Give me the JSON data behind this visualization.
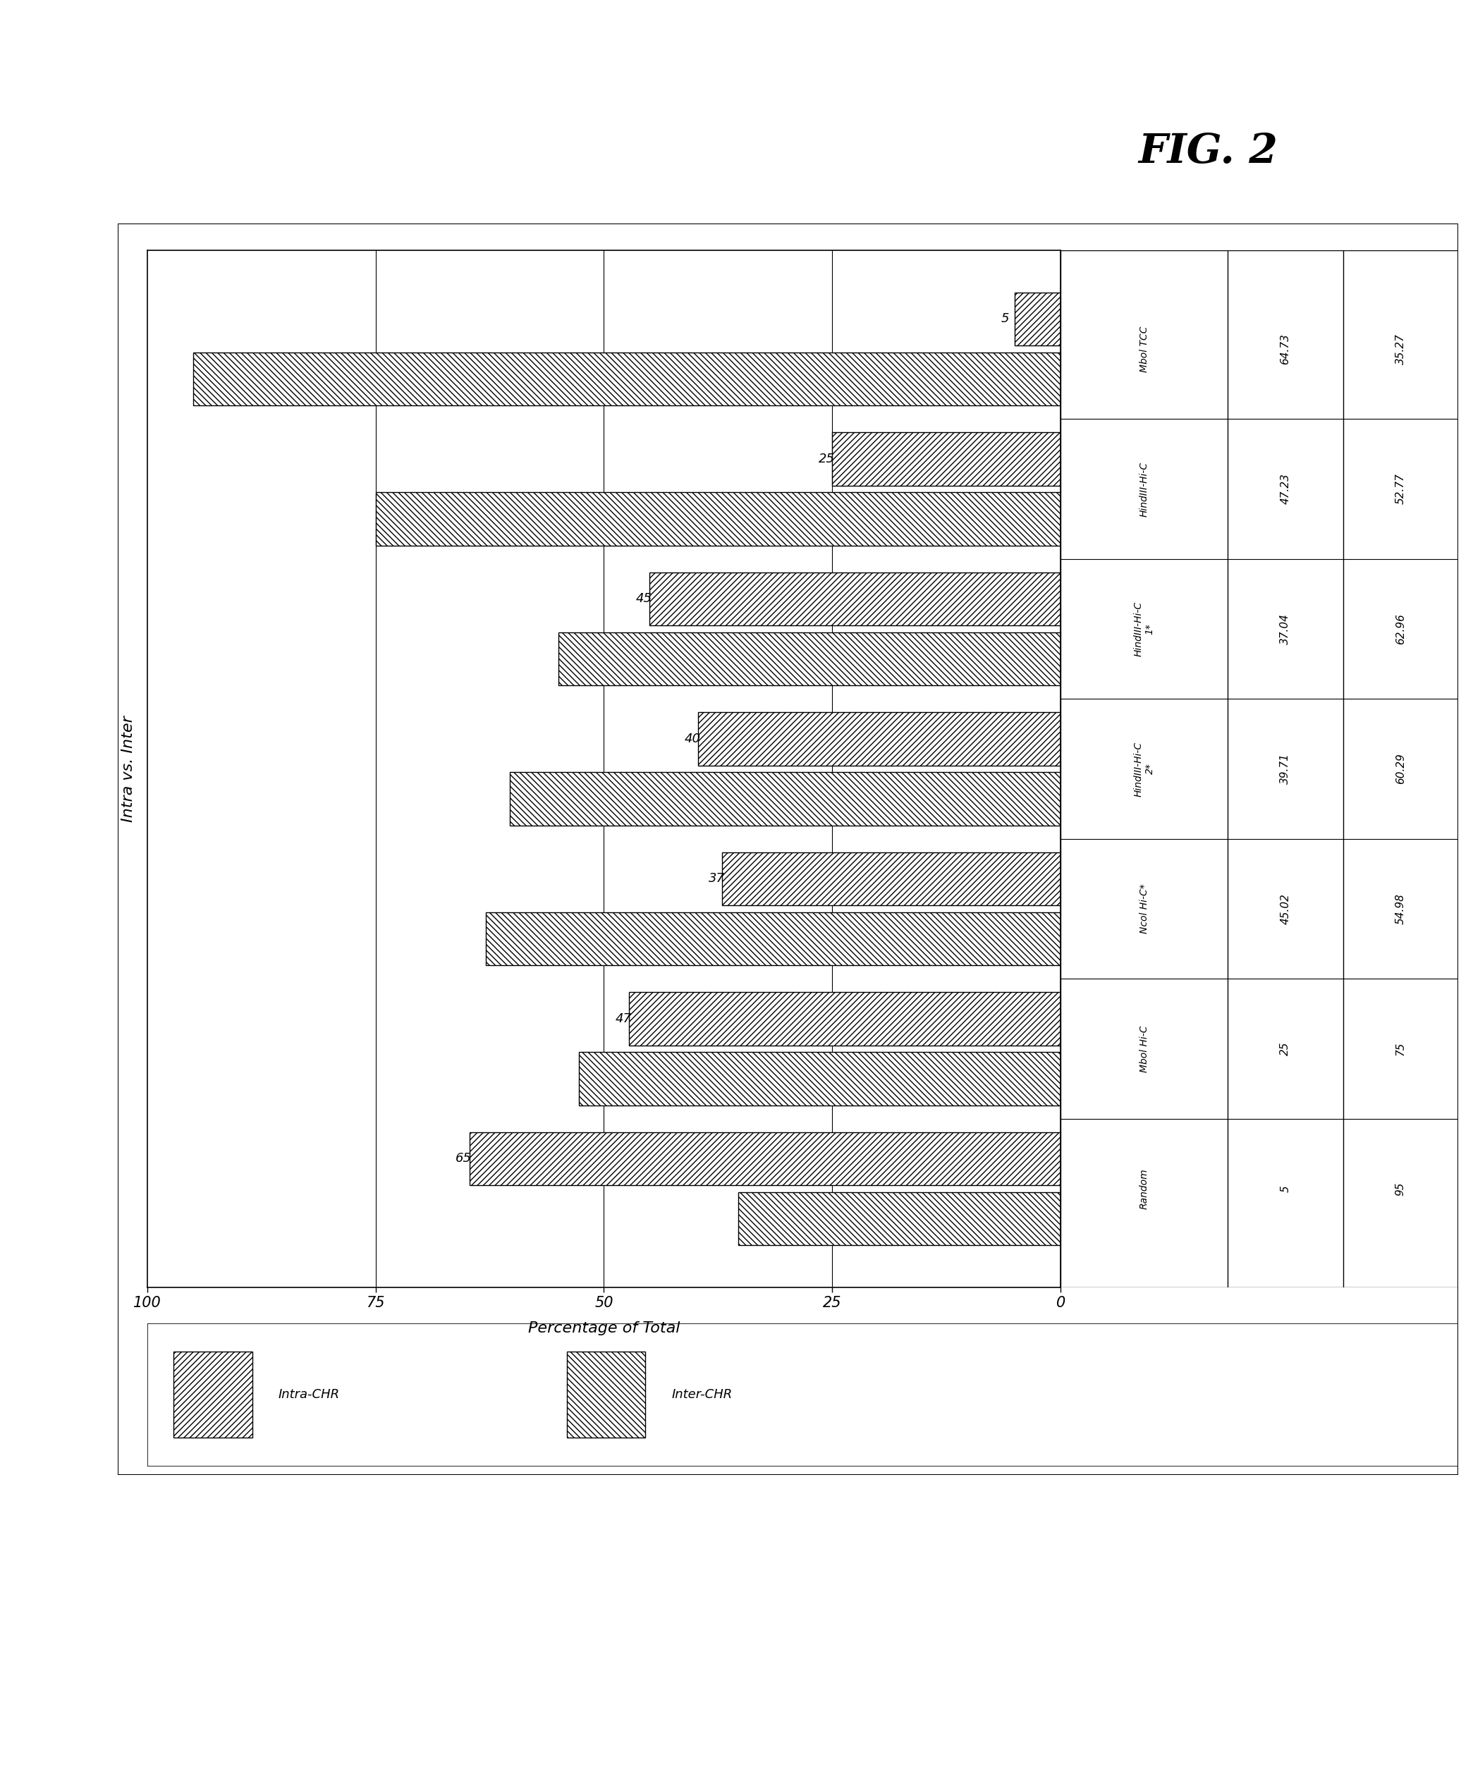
{
  "title": "FIG. 2",
  "ylabel": "Intra vs. Inter",
  "xlabel": "Percentage of Total",
  "categories": [
    "Mbol TCC",
    "HindIII-Hi-C",
    "HindIII-Hi-C 1*",
    "HindIII-Hi-C 2*",
    "Ncol Hi-C*",
    "Mbol Hi-C",
    "Random"
  ],
  "table_categories": [
    "Mbol TCC",
    "HindIII-Hi-C",
    "HindIII-Hi-C\n1*",
    "HindIII-Hi-C\n2*",
    "Ncol Hi-C*",
    "Mbol Hi-C",
    "Random"
  ],
  "intra_values": [
    64.73,
    47.23,
    37.04,
    39.71,
    45.02,
    25.0,
    5.0
  ],
  "inter_values": [
    35.27,
    52.77,
    62.96,
    60.29,
    54.98,
    75.0,
    95.0
  ],
  "intra_labels": [
    "65",
    "47",
    "37",
    "40",
    "45",
    "25",
    "5"
  ],
  "table_intra": [
    "64.73",
    "47.23",
    "37.04",
    "39.71",
    "45.02",
    "25",
    "5"
  ],
  "table_inter": [
    "35.27",
    "52.77",
    "62.96",
    "60.29",
    "54.98",
    "75",
    "95"
  ],
  "background_color": "#ffffff",
  "legend_labels": [
    "Intra-CHR",
    "Inter-CHR"
  ]
}
